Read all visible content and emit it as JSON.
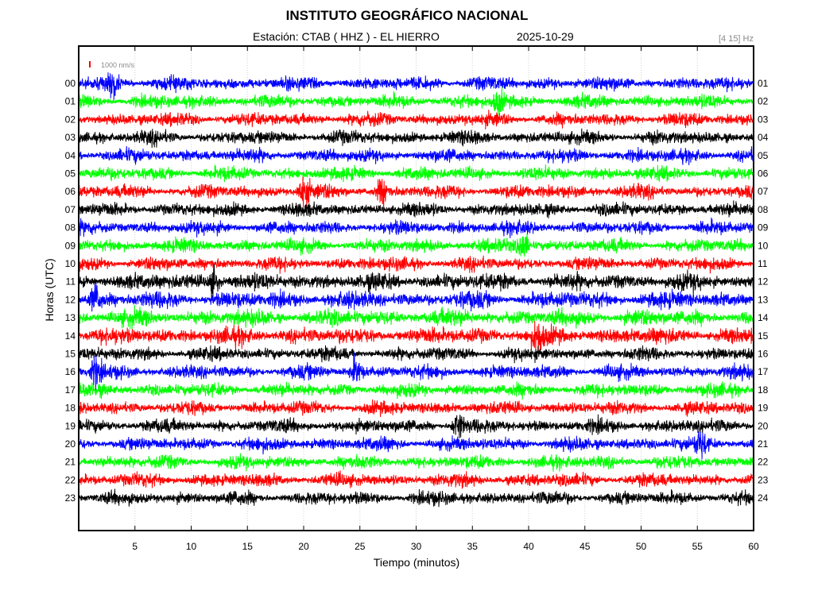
{
  "header": {
    "title": "INSTITUTO GEOGRÁFICO NACIONAL",
    "station": "Estación:  CTAB ( HHZ ) - EL HIERRO",
    "date": "2025-10-29",
    "filter": "[4 15] Hz"
  },
  "chart_data": {
    "type": "line",
    "title": "INSTITUTO GEOGRÁFICO NACIONAL",
    "xlabel": "Tiempo (minutos)",
    "ylabel": "Horas (UTC)",
    "xlim": [
      0,
      60
    ],
    "x_ticks": [
      5,
      10,
      15,
      20,
      25,
      30,
      35,
      40,
      45,
      50,
      55,
      60
    ],
    "left_hour_labels": [
      "00",
      "01",
      "02",
      "03",
      "04",
      "05",
      "06",
      "07",
      "08",
      "09",
      "10",
      "11",
      "12",
      "13",
      "14",
      "15",
      "16",
      "17",
      "18",
      "19",
      "20",
      "21",
      "22",
      "23"
    ],
    "right_hour_labels": [
      "01",
      "02",
      "03",
      "04",
      "05",
      "06",
      "07",
      "08",
      "09",
      "10",
      "11",
      "12",
      "13",
      "14",
      "15",
      "16",
      "17",
      "18",
      "19",
      "20",
      "21",
      "22",
      "23",
      "24"
    ],
    "trace_colors": [
      "#0000ff",
      "#00ff00",
      "#ff0000",
      "#000000"
    ],
    "scale_bar": {
      "label": "1000 nm/s",
      "color": "#ff0000"
    },
    "grid": true,
    "notable_events": [
      {
        "hour": 0,
        "minute": 3.0,
        "amplitude": 1.8
      },
      {
        "hour": 1,
        "minute": 37.3,
        "amplitude": 1.6
      },
      {
        "hour": 6,
        "minute": 20.0,
        "amplitude": 2.6
      },
      {
        "hour": 6,
        "minute": 27.0,
        "amplitude": 1.8
      },
      {
        "hour": 9,
        "minute": 39.5,
        "amplitude": 2.2
      },
      {
        "hour": 11,
        "minute": 12.0,
        "amplitude": 2.0
      },
      {
        "hour": 12,
        "minute": 1.5,
        "amplitude": 1.8
      },
      {
        "hour": 14,
        "minute": 40.8,
        "amplitude": 2.0
      },
      {
        "hour": 16,
        "minute": 24.6,
        "amplitude": 2.0
      },
      {
        "hour": 16,
        "minute": 1.5,
        "amplitude": 1.8
      },
      {
        "hour": 19,
        "minute": 33.7,
        "amplitude": 1.8
      },
      {
        "hour": 20,
        "minute": 55.3,
        "amplitude": 1.6
      }
    ]
  }
}
